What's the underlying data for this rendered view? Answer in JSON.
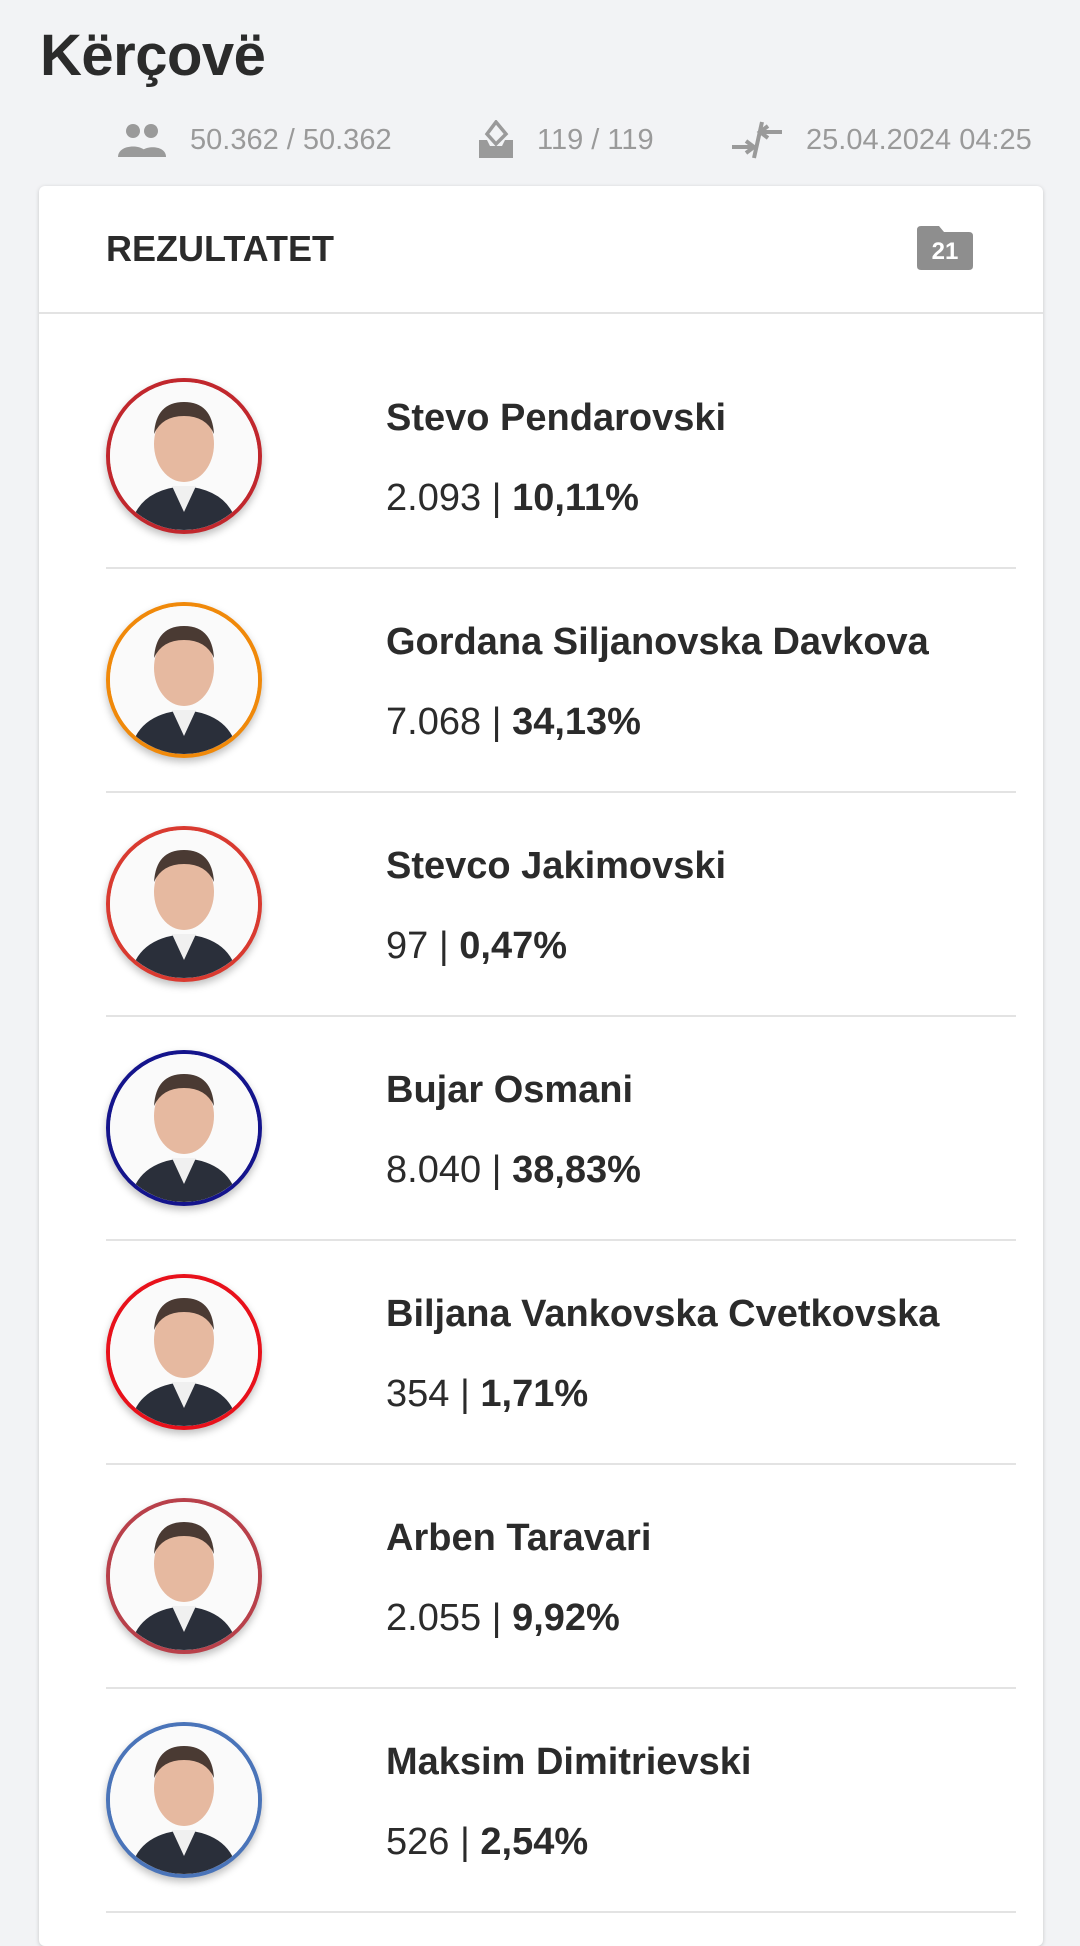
{
  "header": {
    "title": "Kërçovë",
    "voters": "50.362 / 50.362",
    "stations": "119 / 119",
    "updated": "25.04.2024 04:25"
  },
  "card": {
    "title": "REZULTATET",
    "badge": "21"
  },
  "candidates": [
    {
      "name": "Stevo Pendarovski",
      "votes": "2.093",
      "percent": "10,11%",
      "color": "#c1272d"
    },
    {
      "name": "Gordana Siljanovska Davkova",
      "votes": "7.068",
      "percent": "34,13%",
      "color": "#f0890a"
    },
    {
      "name": "Stevco Jakimovski",
      "votes": "97",
      "percent": "0,47%",
      "color": "#d93a30"
    },
    {
      "name": "Bujar Osmani",
      "votes": "8.040",
      "percent": "38,83%",
      "color": "#14148c"
    },
    {
      "name": "Biljana Vankovska Cvetkovska",
      "votes": "354",
      "percent": "1,71%",
      "color": "#e8111b"
    },
    {
      "name": "Arben Taravari",
      "votes": "2.055",
      "percent": "9,92%",
      "color": "#b8404a"
    },
    {
      "name": "Maksim Dimitrievski",
      "votes": "526",
      "percent": "2,54%",
      "color": "#4a74b9"
    }
  ]
}
